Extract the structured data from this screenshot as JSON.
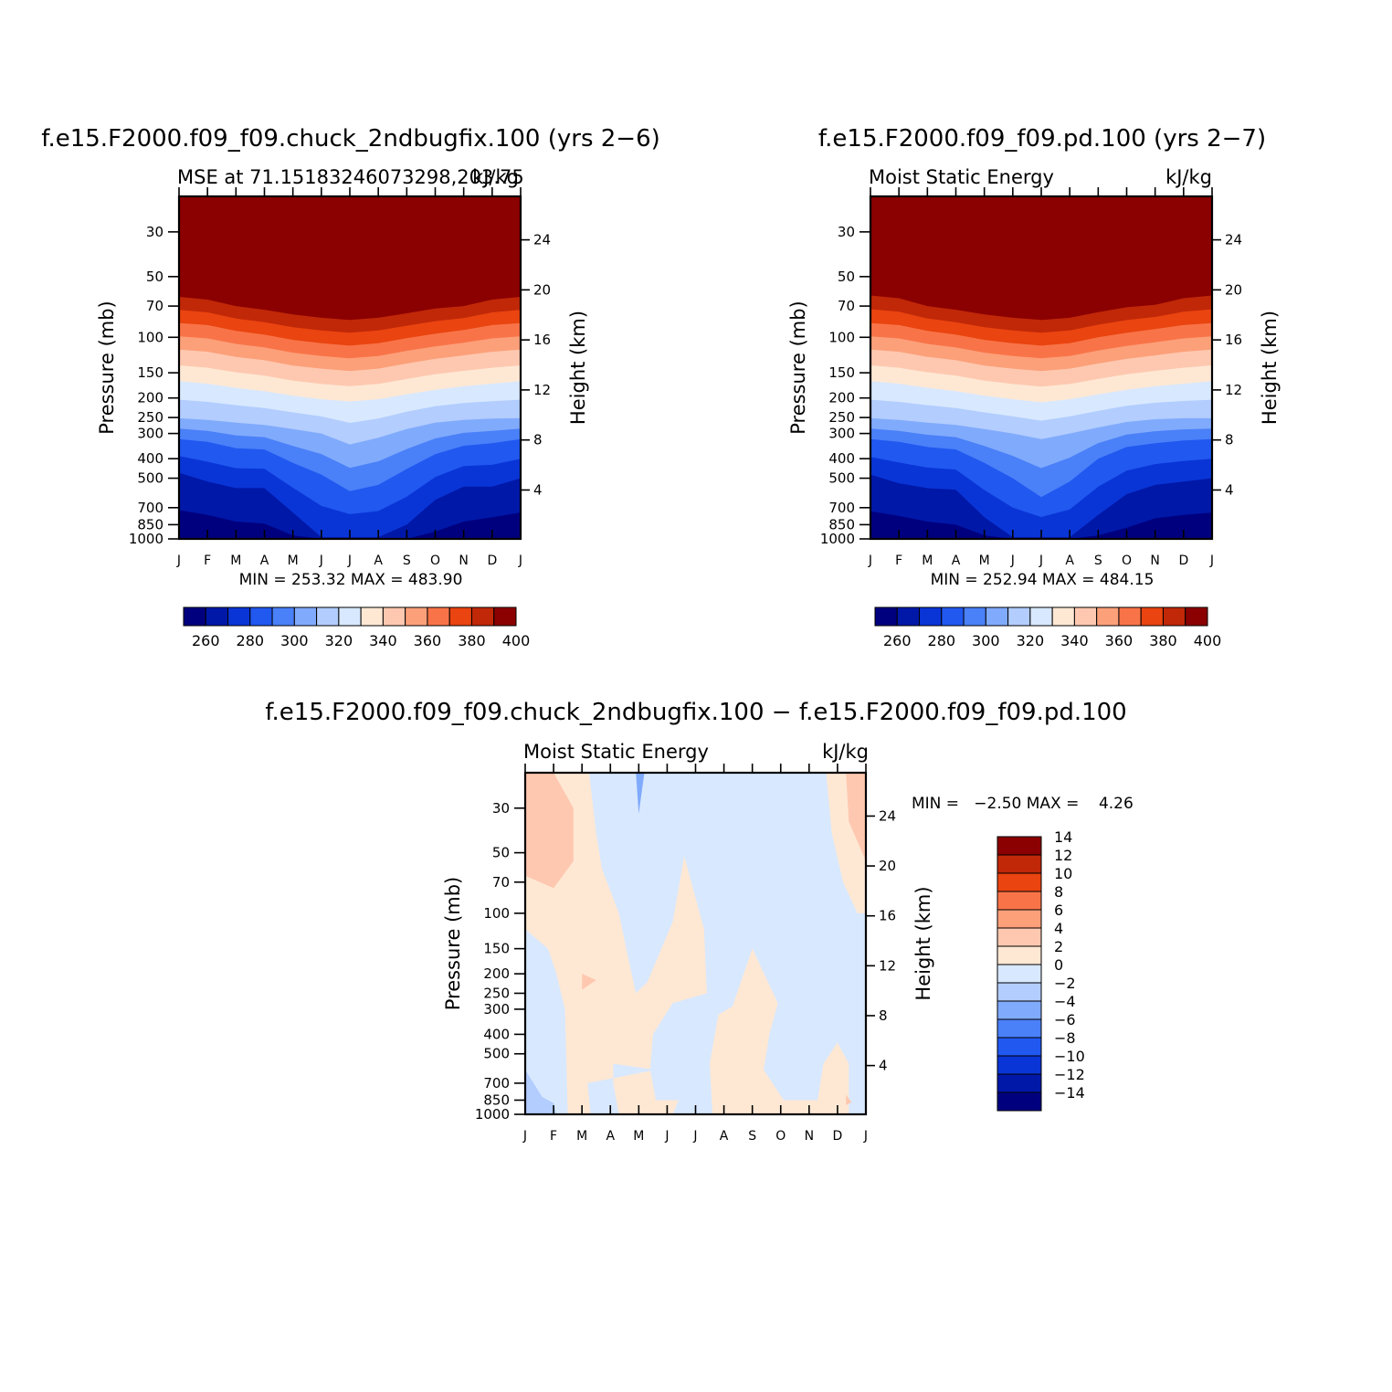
{
  "panels": [
    {
      "title": "f.e15.F2000.f09_f09.chuck_2ndbugfix.100 (yrs 2−6)",
      "left_label": "MSE at 71.15183246073298,203.75",
      "right_label": "kJ/kg",
      "minmax": "MIN = 253.32 MAX = 483.90"
    },
    {
      "title": "f.e15.F2000.f09_f09.pd.100 (yrs 2−7)",
      "left_label": "Moist Static Energy",
      "right_label": "kJ/kg",
      "minmax": "MIN = 252.94 MAX = 484.15"
    },
    {
      "title": "f.e15.F2000.f09_f09.chuck_2ndbugfix.100 − f.e15.F2000.f09_f09.pd.100",
      "left_label": "Moist Static Energy",
      "right_label": "kJ/kg",
      "minmax": "MIN =   −2.50 MAX =    4.26"
    }
  ],
  "axes": {
    "ylabel": "Pressure (mb)",
    "ylabel_right": "Height (km)",
    "pressure_ticks": [
      "30",
      "50",
      "70",
      "100",
      "150",
      "200",
      "250",
      "300",
      "400",
      "500",
      "700",
      "850",
      "1000"
    ],
    "height_ticks": [
      "4",
      "8",
      "12",
      "16",
      "20",
      "24"
    ],
    "month_ticks": [
      "J",
      "F",
      "M",
      "A",
      "M",
      "J",
      "J",
      "A",
      "S",
      "O",
      "N",
      "D",
      "J"
    ]
  },
  "colorbars": {
    "abs": {
      "colors": [
        "#00007f",
        "#0018a8",
        "#0a35d6",
        "#2058f0",
        "#4a80f8",
        "#80aafc",
        "#b2cdfe",
        "#d8e8fe",
        "#fee8d4",
        "#fec8b0",
        "#fca07a",
        "#f87448",
        "#ea4410",
        "#c02808",
        "#8b0000"
      ],
      "labels": [
        "260",
        "280",
        "300",
        "320",
        "340",
        "360",
        "380",
        "400"
      ]
    },
    "diff": {
      "colors": [
        "#00007f",
        "#0018a8",
        "#0a35d6",
        "#2058f0",
        "#4a80f8",
        "#80aafc",
        "#b2cdfe",
        "#d8e8fe",
        "#fee8d4",
        "#fec8b0",
        "#fca07a",
        "#f87448",
        "#ea4410",
        "#c02808",
        "#8b0000"
      ],
      "labels": [
        "−14",
        "−12",
        "−10",
        "−8",
        "−6",
        "−4",
        "−2",
        "0",
        "2",
        "4",
        "6",
        "8",
        "10",
        "12",
        "14"
      ]
    }
  },
  "chart_data": [
    {
      "type": "heatmap",
      "title": "f.e15.F2000.f09_f09.chuck_2ndbugfix.100 (yrs 2−6)",
      "xlabel": "",
      "ylabel": "Pressure (mb)",
      "units": "kJ/kg",
      "x": [
        "J",
        "F",
        "M",
        "A",
        "M",
        "J",
        "J",
        "A",
        "S",
        "O",
        "N",
        "D",
        "J"
      ],
      "ylim": [
        1000,
        20
      ],
      "levels": [
        260,
        270,
        280,
        290,
        300,
        310,
        320,
        330,
        340,
        350,
        360,
        370,
        380,
        390,
        400
      ],
      "contour_pressure_mb": {
        "level_400": [
          63,
          65,
          70,
          73,
          77,
          80,
          82,
          80,
          76,
          72,
          70,
          65,
          63
        ],
        "level_380": [
          85,
          87,
          93,
          97,
          103,
          107,
          110,
          107,
          101,
          96,
          92,
          87,
          85
        ],
        "level_360": [
          115,
          118,
          125,
          130,
          138,
          143,
          147,
          143,
          135,
          128,
          123,
          118,
          115
        ],
        "level_340": [
          165,
          170,
          178,
          185,
          195,
          203,
          208,
          203,
          192,
          182,
          175,
          170,
          165
        ],
        "level_320": [
          252,
          257,
          265,
          272,
          285,
          300,
          340,
          315,
          285,
          265,
          257,
          253,
          252
        ],
        "level_300": [
          320,
          330,
          355,
          360,
          420,
          480,
          580,
          540,
          450,
          380,
          345,
          335,
          320
        ],
        "level_280": [
          470,
          520,
          560,
          560,
          740,
          980,
          980,
          980,
          850,
          640,
          550,
          550,
          500
        ],
        "level_270": [
          720,
          760,
          820,
          840,
          960,
          1000,
          1000,
          1000,
          1000,
          920,
          820,
          780,
          740
        ],
        "level_260": [
          920,
          960,
          990,
          990,
          1000,
          1000,
          1000,
          1000,
          1000,
          1000,
          970,
          960,
          950
        ]
      },
      "stats": {
        "min": 253.32,
        "max": 483.9
      }
    },
    {
      "type": "heatmap",
      "title": "f.e15.F2000.f09_f09.pd.100 (yrs 2−7)",
      "xlabel": "",
      "ylabel": "Pressure (mb)",
      "units": "kJ/kg",
      "x": [
        "J",
        "F",
        "M",
        "A",
        "M",
        "J",
        "J",
        "A",
        "S",
        "O",
        "N",
        "D",
        "J"
      ],
      "ylim": [
        1000,
        20
      ],
      "levels": [
        260,
        270,
        280,
        290,
        300,
        310,
        320,
        330,
        340,
        350,
        360,
        370,
        380,
        390,
        400
      ],
      "contour_pressure_mb": {
        "level_400": [
          62,
          64,
          70,
          73,
          77,
          80,
          82,
          80,
          75,
          71,
          69,
          64,
          62
        ],
        "level_380": [
          85,
          87,
          93,
          97,
          103,
          107,
          110,
          107,
          100,
          95,
          91,
          87,
          85
        ],
        "level_360": [
          115,
          118,
          125,
          130,
          138,
          143,
          147,
          143,
          135,
          128,
          123,
          118,
          115
        ],
        "level_340": [
          165,
          170,
          178,
          185,
          195,
          203,
          210,
          203,
          192,
          182,
          175,
          170,
          165
        ],
        "level_320": [
          252,
          257,
          265,
          272,
          285,
          300,
          320,
          300,
          280,
          263,
          255,
          252,
          252
        ],
        "level_300": [
          320,
          330,
          350,
          360,
          420,
          500,
          620,
          520,
          400,
          350,
          335,
          325,
          320
        ],
        "level_280": [
          480,
          530,
          560,
          570,
          780,
          980,
          980,
          980,
          760,
          600,
          540,
          520,
          500
        ],
        "level_270": [
          730,
          770,
          820,
          850,
          960,
          1000,
          1000,
          1000,
          960,
          880,
          790,
          760,
          740
        ],
        "level_260": [
          930,
          960,
          980,
          990,
          1000,
          1000,
          1000,
          1000,
          1000,
          1000,
          970,
          950,
          940
        ]
      },
      "stats": {
        "min": 252.94,
        "max": 484.15
      }
    },
    {
      "type": "heatmap",
      "title": "f.e15.F2000.f09_f09.chuck_2ndbugfix.100 − f.e15.F2000.f09_f09.pd.100",
      "xlabel": "",
      "ylabel": "Pressure (mb)",
      "units": "kJ/kg",
      "x": [
        "J",
        "F",
        "M",
        "A",
        "M",
        "J",
        "J",
        "A",
        "S",
        "O",
        "N",
        "D",
        "J"
      ],
      "ylim": [
        1000,
        20
      ],
      "levels": [
        -14,
        -12,
        -10,
        -8,
        -6,
        -4,
        -2,
        0,
        2,
        4,
        6,
        8,
        10,
        12,
        14
      ],
      "background_interval": [
        -2,
        0
      ],
      "stats": {
        "min": -2.5,
        "max": 4.26
      }
    }
  ]
}
